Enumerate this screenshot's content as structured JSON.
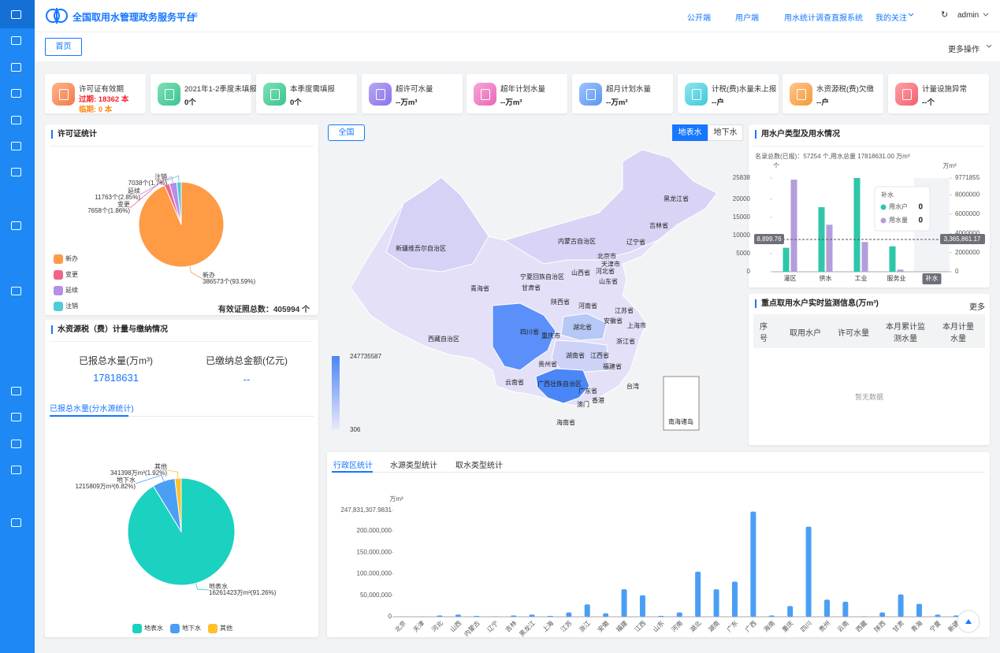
{
  "header": {
    "title": "全国取用水管理政务服务平台",
    "nav": [
      "公开端",
      "用户端",
      "用水统计调查直报系统",
      "我的关注"
    ],
    "user": "admin"
  },
  "tabs": {
    "home": "首页",
    "more": "更多操作"
  },
  "cards": [
    {
      "title": "许可证有效期",
      "lines": [
        "过期: 18362 本",
        "临期: 0 本"
      ]
    },
    {
      "title": "2021年1-2季度未填报",
      "lines": [
        "0个"
      ]
    },
    {
      "title": "本季度需填报",
      "lines": [
        "0个"
      ]
    },
    {
      "title": "超许可水量",
      "lines": [
        "--万m³"
      ]
    },
    {
      "title": "超年计划水量",
      "lines": [
        "--万m³"
      ]
    },
    {
      "title": "超月计划水量",
      "lines": [
        "--万m³"
      ]
    },
    {
      "title": "计税(费)水量未上报",
      "lines": [
        "--户"
      ]
    },
    {
      "title": "水资源税(费)欠缴",
      "lines": [
        "--户"
      ]
    },
    {
      "title": "计量设施异常",
      "lines": [
        "--个"
      ]
    }
  ],
  "license_panel": {
    "title": "许可证统计",
    "total_label": "有效证照总数：",
    "total": "405994 个"
  },
  "tax_panel": {
    "title": "水资源税（费）计量与缴纳情况",
    "stats": [
      {
        "label": "已报总水量(万m³)",
        "value": 17818631
      },
      {
        "label": "已缴纳总金额(亿元)",
        "value": "--"
      }
    ]
  },
  "map": {
    "scope": "全国",
    "toggles": [
      "地表水",
      "地下水"
    ],
    "legend": [
      247735587,
      306
    ],
    "inset": "南海诸岛",
    "regions": [
      "黑龙江省",
      "吉林省",
      "辽宁省",
      "内蒙古自治区",
      "北京市",
      "天津市",
      "河北省",
      "山西省",
      "宁夏回族自治区",
      "山东省",
      "甘肃省",
      "新疆维吾尔自治区",
      "青海省",
      "陕西省",
      "河南省",
      "江苏省",
      "安徽省",
      "上海市",
      "湖北省",
      "四川省",
      "重庆市",
      "西藏自治区",
      "浙江省",
      "湖南省",
      "江西省",
      "贵州省",
      "福建省",
      "云南省",
      "广西壮族自治区",
      "广东省",
      "台湾",
      "香港",
      "澳门",
      "海南省"
    ]
  },
  "monitor_panel": {
    "title": "重点取用水户实时监测信息(万m³)",
    "more": "更多",
    "columns": [
      "序号",
      "取用水户",
      "许可水量",
      "本月累计监测水量",
      "本月计量水量"
    ],
    "empty": "暂无数据"
  },
  "bottom_tabs": [
    "行政区统计",
    "水源类型统计",
    "取水类型统计"
  ],
  "chart_data": [
    {
      "type": "pie",
      "categories": [
        "新办",
        "变更",
        "延续",
        "注销"
      ],
      "values": [
        386573,
        7658,
        11763,
        7038
      ],
      "value_labels": [
        "386573个(93.59%)",
        "7658个(1.86%)",
        "11763个(2.85%)",
        "7038个(1.7%)"
      ],
      "colors": [
        "#ff9a45",
        "#f0658a",
        "#b48ee8",
        "#4ecbd8"
      ]
    },
    {
      "type": "pie",
      "title": "已报总水量(分水源统计)",
      "categories": [
        "地表水",
        "地下水",
        "其他"
      ],
      "values": [
        16261423,
        1215809,
        341398
      ],
      "value_labels": [
        "16261423万m³(91.26%)",
        "1215809万m³(6.82%)",
        "341398万m³(1.92%)"
      ],
      "colors": [
        "#1bd1c0",
        "#4a9ff5",
        "#ffc02a"
      ]
    },
    {
      "type": "dualbar",
      "title": "用水户类型及用水情况",
      "subtitle": "名录总数(已报)：57254 个,用水总量 17818631.00 万m³",
      "y_label": "个",
      "y2_label": "万m³",
      "categories": [
        "灌区",
        "供水",
        "工业",
        "服务业",
        "补水"
      ],
      "series": [
        {
          "name": "用水户",
          "color": "#2ec7a9",
          "values": [
            6600,
            17800,
            25838,
            7016,
            0
          ]
        },
        {
          "name": "用水量",
          "color": "#b39ddb",
          "axis": "y2",
          "values": [
            9600000,
            4900000,
            3100000,
            218631,
            0
          ]
        }
      ],
      "ylim": [
        0,
        25838
      ],
      "yticks": [
        0,
        5000,
        10000,
        15000,
        20000,
        25838
      ],
      "y2lim": [
        0,
        9771855
      ],
      "y2ticks": [
        0,
        2000000,
        4000000,
        6000000,
        8000000,
        9771855
      ],
      "markline": {
        "y": {
          "value": 8899.76,
          "label": "8,899.76"
        },
        "y2": {
          "value": 3365861.17,
          "label": "3,365,861.17"
        }
      }
    },
    {
      "type": "bar",
      "y_label": "万m³",
      "color": "#4a9ff5",
      "categories": [
        "北京",
        "天津",
        "河北",
        "山西",
        "内蒙古",
        "辽宁",
        "吉林",
        "黑龙江",
        "上海",
        "江苏",
        "浙江",
        "安徽",
        "福建",
        "江西",
        "山东",
        "河南",
        "湖北",
        "湖南",
        "广东",
        "广西",
        "海南",
        "重庆",
        "四川",
        "贵州",
        "云南",
        "西藏",
        "陕西",
        "甘肃",
        "青海",
        "宁夏",
        "新疆"
      ],
      "values": [
        500000,
        500000,
        3000000,
        5000000,
        2000000,
        1000000,
        3000000,
        5000000,
        2000000,
        10000000,
        29000000,
        8000000,
        64000000,
        50000000,
        2000000,
        10000000,
        105000000,
        64000000,
        82000000,
        245000000,
        3000000,
        25000000,
        210000000,
        40000000,
        35000000,
        1000000,
        10000000,
        52000000,
        30000000,
        5000000,
        3000000
      ],
      "ylim": [
        0,
        247831307.9831
      ],
      "yticks": [
        0,
        {
          "value": 50000000,
          "label": "50,000,000"
        },
        {
          "value": 100000000,
          "label": "100,000,000"
        },
        {
          "value": 150000000,
          "label": "150,000,000"
        },
        {
          "value": 200000000,
          "label": "200,000,000"
        },
        {
          "value": 247831307.9831,
          "label": "247,831,307.9831"
        }
      ]
    }
  ]
}
